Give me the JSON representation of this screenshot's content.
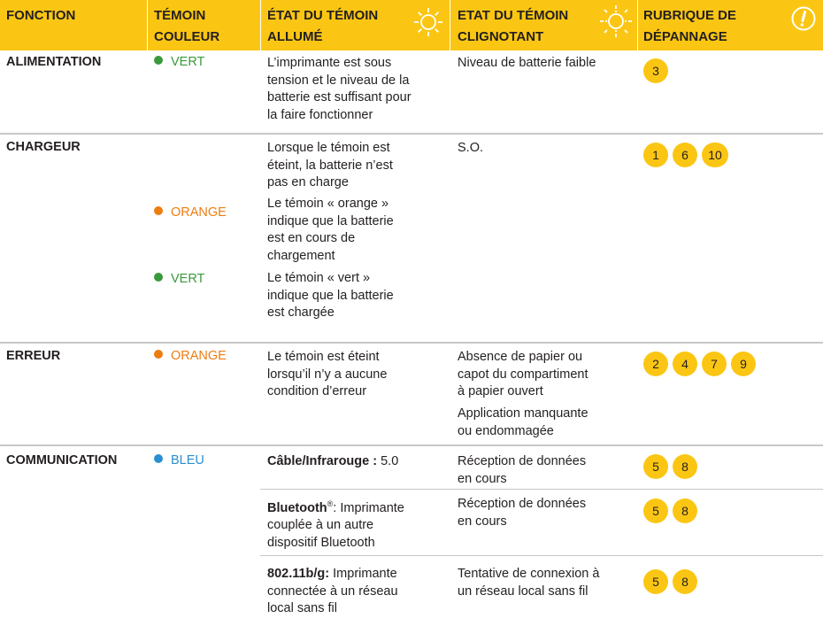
{
  "header": {
    "col1": "FONCTION",
    "col2_l1": "TÉMOIN",
    "col2_l2": "COULEUR",
    "col3_l1": "ÉTAT DU TÉMOIN",
    "col3_l2": "ALLUMÉ",
    "col4_l1": "ETAT DU TÉMOIN",
    "col4_l2": "CLIGNOTANT",
    "col5_l1": "RUBRIQUE DE",
    "col5_l2": "DÉPANNAGE",
    "icon_lit": "sun-solid-icon",
    "icon_blink": "sun-dashed-icon",
    "icon_trouble": "exclamation-circle-icon"
  },
  "colors": {
    "header_bg": "#fbc613",
    "green": "#3a9a3b",
    "orange": "#ee7d11",
    "blue": "#2a8fd0",
    "badge": "#fbc613"
  },
  "rows": {
    "alimentation": {
      "label": "ALIMENTATION",
      "color": "VERT",
      "lit": [
        "L’imprimante est sous",
        "tension et le niveau de la",
        "batterie est suffisant pour",
        "la faire fonctionner"
      ],
      "blink": [
        "Niveau de batterie faible"
      ],
      "badges": [
        "3"
      ]
    },
    "chargeur": {
      "label": "CHARGEUR",
      "lit1": [
        "Lorsque le témoin est",
        "éteint, la batterie n’est",
        "pas en charge"
      ],
      "blink": [
        "S.O."
      ],
      "badges": [
        "1",
        "6",
        "10"
      ],
      "color2": "ORANGE",
      "lit2": [
        "Le témoin « orange »",
        "indique que la batterie",
        "est en cours de",
        "chargement"
      ],
      "color3": "VERT",
      "lit3": [
        "Le témoin « vert »",
        "indique que la batterie",
        "est chargée"
      ]
    },
    "erreur": {
      "label": "ERREUR",
      "color": "ORANGE",
      "lit": [
        "Le témoin est éteint",
        "lorsqu’il n’y a aucune",
        "condition d’erreur"
      ],
      "blink1": [
        "Absence de papier ou",
        "capot du compartiment",
        "à papier ouvert"
      ],
      "blink2": [
        "Application manquante",
        "ou endommagée"
      ],
      "badges": [
        "2",
        "4",
        "7",
        "9"
      ]
    },
    "communication": {
      "label": "COMMUNICATION",
      "color": "BLEU",
      "sub1": {
        "bold": "Câble/Infrarouge :",
        "rest": " 5.0",
        "blink": [
          "Réception de données",
          "en cours"
        ],
        "badges": [
          "5",
          "8"
        ]
      },
      "sub2": {
        "bold": "Bluetooth",
        "sup": "®",
        "rest1": ": Imprimante",
        "rest": [
          "couplée à un autre",
          "dispositif Bluetooth"
        ],
        "blink": [
          "Réception de données",
          "en cours"
        ],
        "badges": [
          "5",
          "8"
        ]
      },
      "sub3": {
        "bold": "802.11b/g:",
        "rest1": " Imprimante",
        "rest": [
          "connectée à un réseau",
          "local sans fil"
        ],
        "blink": [
          "Tentative de connexion à",
          "un réseau local sans fil"
        ],
        "badges": [
          "5",
          "8"
        ]
      }
    }
  }
}
